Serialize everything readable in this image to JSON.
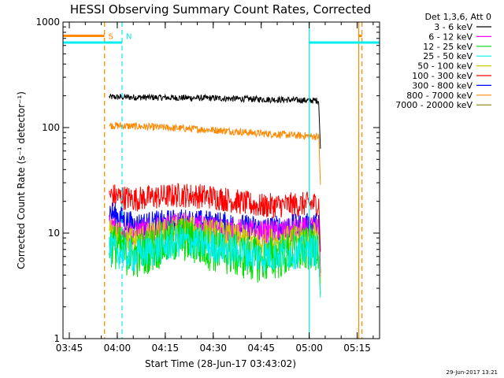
{
  "chart_data": {
    "type": "line",
    "title": "HESSI Observing Summary Count Rates, Corrected",
    "xlabel": "Start Time (28-Jun-17 03:43:02)",
    "ylabel": "Corrected Count Rate (s⁻¹ detector⁻¹)",
    "y_scale": "log",
    "ylim": [
      1,
      1000
    ],
    "y_ticks": [
      {
        "value": 1,
        "label": "1"
      },
      {
        "value": 10,
        "label": "10"
      },
      {
        "value": 100,
        "label": "100"
      },
      {
        "value": 1000,
        "label": "1000"
      }
    ],
    "xlim": [
      "03:43:02",
      "05:22:00"
    ],
    "x_ticks": [
      "03:45",
      "04:00",
      "04:15",
      "04:30",
      "04:45",
      "05:00",
      "05:15"
    ],
    "legend": {
      "title": "Det 1,3,6, Att 0",
      "placement": "outside-right",
      "entries": [
        {
          "label": "3 - 6 keV",
          "color": "#000000"
        },
        {
          "label": "6 - 12 keV",
          "color": "#ff00ff"
        },
        {
          "label": "12 - 25 keV",
          "color": "#00dd00"
        },
        {
          "label": "25 - 50 keV",
          "color": "#00eeee"
        },
        {
          "label": "50 - 100 keV",
          "color": "#cccc00"
        },
        {
          "label": "100 - 300 keV",
          "color": "#ff0000"
        },
        {
          "label": "300 - 800 keV",
          "color": "#0000ff"
        },
        {
          "label": "800 - 7000 keV",
          "color": "#ff8800"
        },
        {
          "label": "7000 - 20000 keV",
          "color": "#808000"
        }
      ]
    },
    "data_window": [
      "03:57:30",
      "05:03:00"
    ],
    "series": [
      {
        "name": "3 - 6 keV",
        "color": "#000000",
        "noise": 0.03,
        "points": [
          [
            "03:57:30",
            195
          ],
          [
            "04:30:00",
            190
          ],
          [
            "05:03:00",
            180
          ]
        ]
      },
      {
        "name": "800 - 7000 keV",
        "color": "#ff8800",
        "noise": 0.035,
        "points": [
          [
            "03:57:30",
            105
          ],
          [
            "04:15:00",
            100
          ],
          [
            "04:30:00",
            95
          ],
          [
            "04:45:00",
            88
          ],
          [
            "05:03:00",
            82
          ]
        ]
      },
      {
        "name": "100 - 300 keV",
        "color": "#ff0000",
        "noise": 0.12,
        "points": [
          [
            "03:57:30",
            23
          ],
          [
            "04:05:00",
            21
          ],
          [
            "04:20:00",
            23
          ],
          [
            "04:30:00",
            22
          ],
          [
            "04:45:00",
            18
          ],
          [
            "05:03:00",
            19
          ]
        ]
      },
      {
        "name": "300 - 800 keV",
        "color": "#0000ff",
        "noise": 0.12,
        "points": [
          [
            "03:57:30",
            16
          ],
          [
            "04:05:00",
            12
          ],
          [
            "04:20:00",
            13
          ],
          [
            "04:30:00",
            12.5
          ],
          [
            "04:45:00",
            11
          ],
          [
            "05:03:00",
            12
          ]
        ]
      },
      {
        "name": "6 - 12 keV",
        "color": "#ff00ff",
        "noise": 0.12,
        "points": [
          [
            "03:57:30",
            12
          ],
          [
            "04:05:00",
            10
          ],
          [
            "04:20:00",
            12
          ],
          [
            "04:30:00",
            11
          ],
          [
            "04:45:00",
            10
          ],
          [
            "05:03:00",
            11
          ]
        ]
      },
      {
        "name": "50 - 100 keV",
        "color": "#cccc00",
        "noise": 0.14,
        "points": [
          [
            "03:57:30",
            10
          ],
          [
            "04:05:00",
            8.5
          ],
          [
            "04:20:00",
            11
          ],
          [
            "04:30:00",
            10
          ],
          [
            "04:45:00",
            8
          ],
          [
            "05:03:00",
            9.5
          ]
        ]
      },
      {
        "name": "12 - 25 keV",
        "color": "#00dd00",
        "noise": 0.22,
        "points": [
          [
            "03:57:30",
            8
          ],
          [
            "04:05:00",
            6
          ],
          [
            "04:20:00",
            9
          ],
          [
            "04:30:00",
            7
          ],
          [
            "04:45:00",
            5.5
          ],
          [
            "05:03:00",
            7.5
          ]
        ]
      },
      {
        "name": "25 - 50 keV",
        "color": "#00eeee",
        "noise": 0.16,
        "points": [
          [
            "03:57:30",
            7
          ],
          [
            "04:05:00",
            6
          ],
          [
            "04:20:00",
            8.5
          ],
          [
            "04:30:00",
            7.5
          ],
          [
            "04:45:00",
            6
          ],
          [
            "05:03:00",
            7
          ]
        ]
      }
    ],
    "markers": [
      {
        "label": "S",
        "color": "#ff8800",
        "time": "03:56:00",
        "style": "dashed"
      },
      {
        "label": "N",
        "color": "#00eeee",
        "time": "04:01:30",
        "style": "dashed"
      },
      {
        "label": "",
        "color": "#00eeee",
        "time": "05:00:00",
        "style": "solid"
      },
      {
        "label": "",
        "color": "#ff8800",
        "time": "05:15:30",
        "style": "solid"
      },
      {
        "label": "",
        "color": "#ff8800",
        "time": "05:16:30",
        "style": "dashed"
      }
    ],
    "status_bars": [
      {
        "name": "saa",
        "color": "#ff8800",
        "start": "03:43:02",
        "end": "03:56:00",
        "level": 740
      },
      {
        "name": "saa",
        "color": "#ff8800",
        "start": "05:15:30",
        "end": "05:16:30",
        "level": 740
      },
      {
        "name": "night",
        "color": "#00eeee",
        "start": "03:43:02",
        "end": "04:01:30",
        "level": 640
      },
      {
        "name": "night",
        "color": "#00eeee",
        "start": "05:00:00",
        "end": "05:22:00",
        "level": 640
      }
    ]
  },
  "footer": {
    "timestamp": "29-Jun-2017 13:21"
  }
}
